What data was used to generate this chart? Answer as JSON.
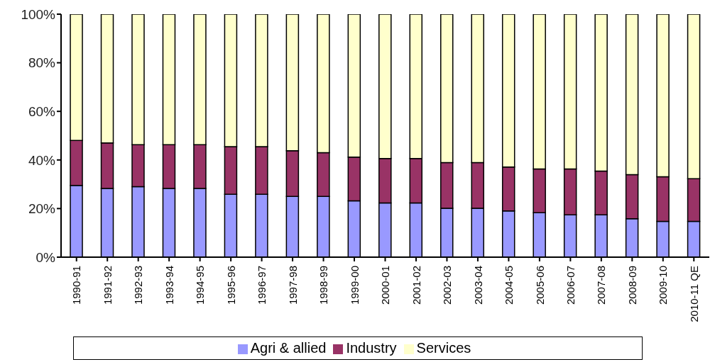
{
  "chart_data": {
    "type": "bar",
    "stacked": true,
    "categories": [
      "1990-91",
      "1991-92",
      "1992-93",
      "1993-94",
      "1994-95",
      "1995-96",
      "1996-97",
      "1997-98",
      "1998-99",
      "1999-00",
      "2000-01",
      "2001-02",
      "2002-03",
      "2003-04",
      "2004-05",
      "2005-06",
      "2006-07",
      "2007-08",
      "2008-09",
      "2009-10",
      "2010-11 QE"
    ],
    "series": [
      {
        "name": "Agri & allied",
        "color": "#9999ff",
        "values": [
          29.5,
          28.3,
          29,
          28.3,
          28.3,
          25.9,
          25.9,
          25,
          25,
          23.2,
          22.3,
          22.3,
          20.1,
          20.1,
          19,
          18.3,
          17.4,
          17.4,
          15.8,
          14.7,
          14.7
        ]
      },
      {
        "name": "Industry",
        "color": "#993366",
        "values": [
          18.5,
          18.7,
          17.3,
          18,
          18,
          19.6,
          19.6,
          18.8,
          18,
          18,
          18.3,
          18.3,
          18.8,
          18.8,
          18.1,
          18,
          18.9,
          18,
          18.2,
          18.4,
          17.6
        ]
      },
      {
        "name": "Services",
        "color": "#ffffcc",
        "values": [
          52,
          53,
          53.7,
          53.7,
          53.7,
          54.5,
          54.5,
          56.2,
          57,
          58.8,
          59.4,
          59.4,
          61.1,
          61.1,
          62.9,
          63.7,
          63.7,
          64.6,
          66,
          66.9,
          67.7
        ]
      }
    ],
    "ylim": [
      0,
      100
    ],
    "yticks": [
      {
        "value": 0,
        "label": "0%"
      },
      {
        "value": 20,
        "label": "20%"
      },
      {
        "value": 40,
        "label": "40%"
      },
      {
        "value": 60,
        "label": "60%"
      },
      {
        "value": 80,
        "label": "80%"
      },
      {
        "value": 100,
        "label": "100%"
      }
    ],
    "grid": false,
    "legend": "bottom"
  }
}
